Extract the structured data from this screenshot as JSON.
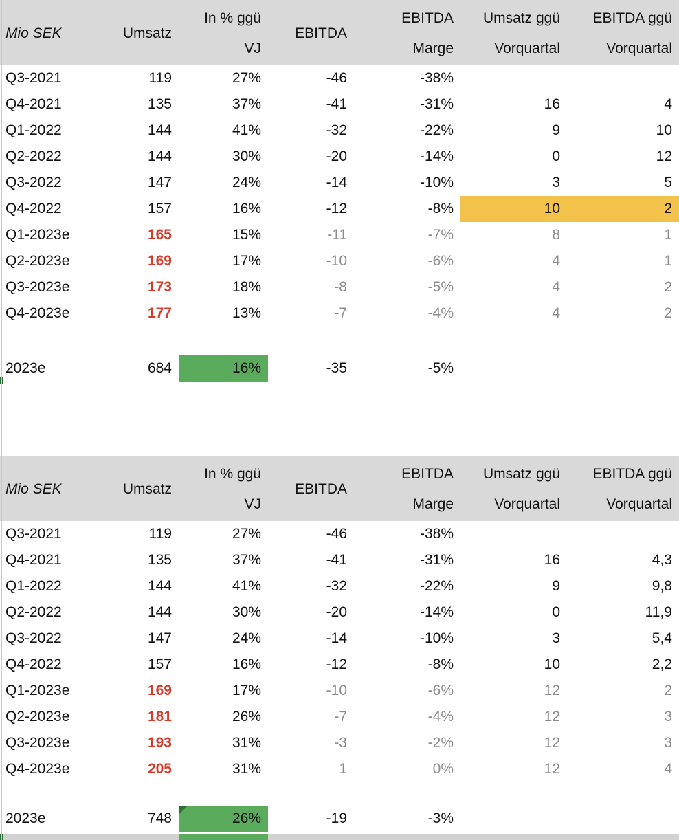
{
  "colors": {
    "header_bg": "#d9d9d9",
    "highlight_yellow": "#f2c24b",
    "highlight_green": "#5aab5c",
    "marker_dark_green": "#2f6f35",
    "forecast_red": "#d63b2a",
    "muted_gray": "#8c8c8c",
    "text_black": "#111111"
  },
  "header_cols": [
    {
      "l1": "Mio SEK",
      "l2": ""
    },
    {
      "l1": "Umsatz",
      "l2": ""
    },
    {
      "l1": "In % ggü",
      "l2": "VJ"
    },
    {
      "l1": "EBITDA",
      "l2": ""
    },
    {
      "l1": "EBITDA",
      "l2": "Marge"
    },
    {
      "l1": "Umsatz ggü",
      "l2": "Vorquartal"
    },
    {
      "l1": "EBITDA ggü",
      "l2": "Vorquartal"
    }
  ],
  "tables": [
    {
      "rows": [
        {
          "label": "Q3-2021",
          "cells": [
            "119",
            "27%",
            "-46",
            "-38%",
            "",
            ""
          ],
          "type": "actual"
        },
        {
          "label": "Q4-2021",
          "cells": [
            "135",
            "37%",
            "-41",
            "-31%",
            "16",
            "4"
          ],
          "type": "actual"
        },
        {
          "label": "Q1-2022",
          "cells": [
            "144",
            "41%",
            "-32",
            "-22%",
            "9",
            "10"
          ],
          "type": "actual"
        },
        {
          "label": "Q2-2022",
          "cells": [
            "144",
            "30%",
            "-20",
            "-14%",
            "0",
            "12"
          ],
          "type": "actual"
        },
        {
          "label": "Q3-2022",
          "cells": [
            "147",
            "24%",
            "-14",
            "-10%",
            "3",
            "5"
          ],
          "type": "actual"
        },
        {
          "label": "Q4-2022",
          "cells": [
            "157",
            "16%",
            "-12",
            "-8%",
            "10",
            "2"
          ],
          "type": "actual",
          "qoq_highlight": true
        },
        {
          "label": "Q1-2023e",
          "cells": [
            "165",
            "15%",
            "-11",
            "-7%",
            "8",
            "1"
          ],
          "type": "forecast"
        },
        {
          "label": "Q2-2023e",
          "cells": [
            "169",
            "17%",
            "-10",
            "-6%",
            "4",
            "1"
          ],
          "type": "forecast"
        },
        {
          "label": "Q3-2023e",
          "cells": [
            "173",
            "18%",
            "-8",
            "-5%",
            "4",
            "2"
          ],
          "type": "forecast"
        },
        {
          "label": "Q4-2023e",
          "cells": [
            "177",
            "13%",
            "-7",
            "-4%",
            "4",
            "2"
          ],
          "type": "forecast"
        }
      ],
      "total": {
        "label": "2023e",
        "umsatz": "684",
        "pct": "16%",
        "ebitda": "-35",
        "marge": "-5%",
        "corner_marker": false
      }
    },
    {
      "rows": [
        {
          "label": "Q3-2021",
          "cells": [
            "119",
            "27%",
            "-46",
            "-38%",
            "",
            ""
          ],
          "type": "actual"
        },
        {
          "label": "Q4-2021",
          "cells": [
            "135",
            "37%",
            "-41",
            "-31%",
            "16",
            "4,3"
          ],
          "type": "actual"
        },
        {
          "label": "Q1-2022",
          "cells": [
            "144",
            "41%",
            "-32",
            "-22%",
            "9",
            "9,8"
          ],
          "type": "actual"
        },
        {
          "label": "Q2-2022",
          "cells": [
            "144",
            "30%",
            "-20",
            "-14%",
            "0",
            "11,9"
          ],
          "type": "actual"
        },
        {
          "label": "Q3-2022",
          "cells": [
            "147",
            "24%",
            "-14",
            "-10%",
            "3",
            "5,4"
          ],
          "type": "actual"
        },
        {
          "label": "Q4-2022",
          "cells": [
            "157",
            "16%",
            "-12",
            "-8%",
            "10",
            "2,2"
          ],
          "type": "actual"
        },
        {
          "label": "Q1-2023e",
          "cells": [
            "169",
            "17%",
            "-10",
            "-6%",
            "12",
            "2"
          ],
          "type": "forecast"
        },
        {
          "label": "Q2-2023e",
          "cells": [
            "181",
            "26%",
            "-7",
            "-4%",
            "12",
            "3"
          ],
          "type": "forecast"
        },
        {
          "label": "Q3-2023e",
          "cells": [
            "193",
            "31%",
            "-3",
            "-2%",
            "12",
            "3"
          ],
          "type": "forecast"
        },
        {
          "label": "Q4-2023e",
          "cells": [
            "205",
            "31%",
            "1",
            "0%",
            "12",
            "4"
          ],
          "type": "forecast"
        }
      ],
      "total": {
        "label": "2023e",
        "umsatz": "748",
        "pct": "26%",
        "ebitda": "-19",
        "marge": "-3%",
        "corner_marker": true
      }
    }
  ]
}
